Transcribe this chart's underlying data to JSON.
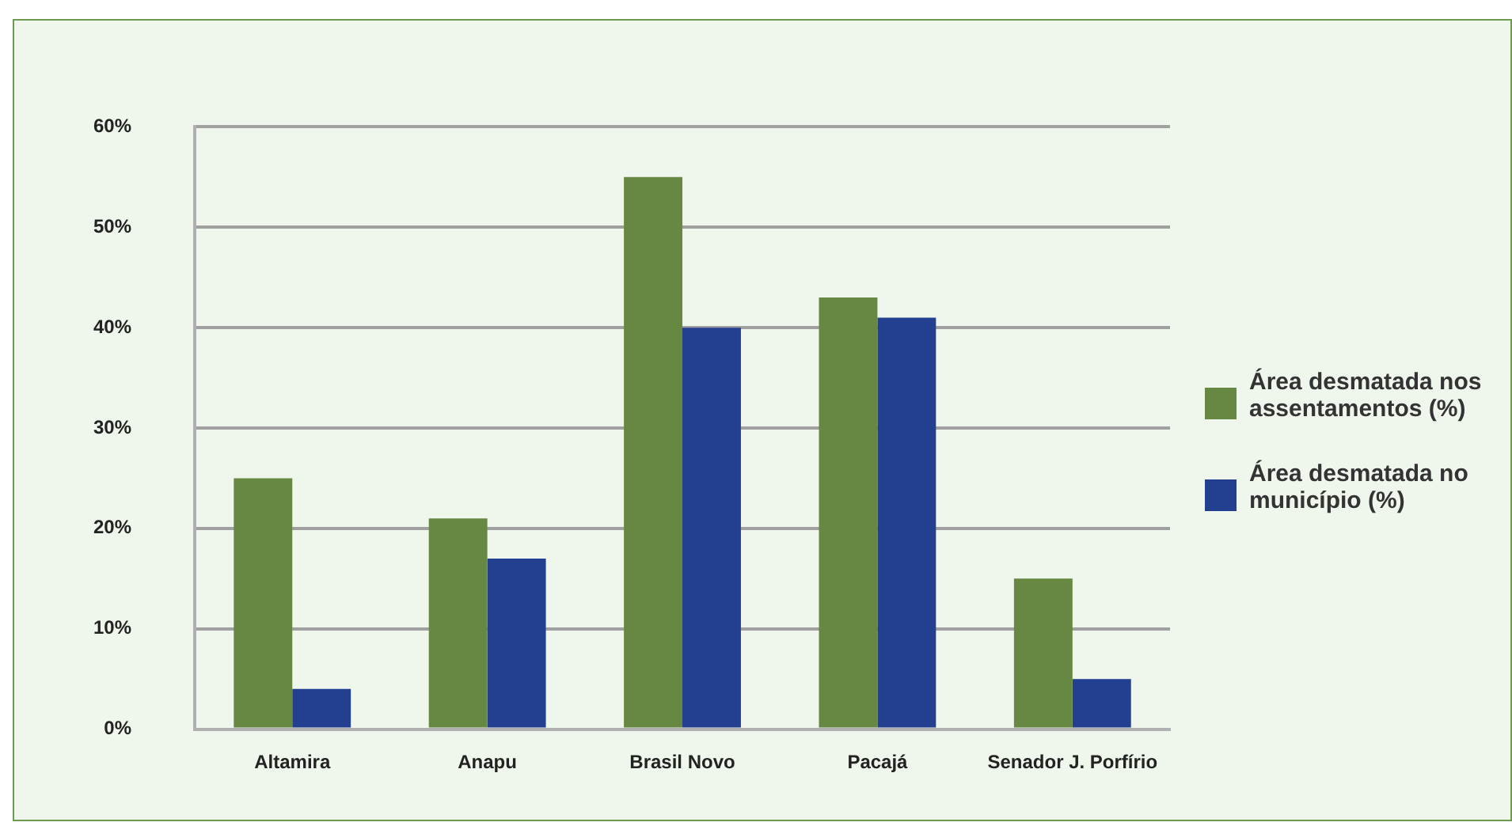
{
  "chart_data": {
    "type": "bar",
    "categories": [
      "Altamira",
      "Anapu",
      "Brasil Novo",
      "Pacajá",
      "Senador J. Porfírio"
    ],
    "series": [
      {
        "name": "Área desmatada nos assentamentos (%)",
        "color": "#678843",
        "values": [
          25,
          21,
          55,
          43,
          15
        ]
      },
      {
        "name": "Área desmatada no município (%)",
        "color": "#233f8f",
        "values": [
          4,
          17,
          40,
          41,
          5
        ]
      }
    ],
    "ylim": [
      0,
      60
    ],
    "yticks": [
      {
        "value": 0,
        "label": "0%"
      },
      {
        "value": 10,
        "label": "10%"
      },
      {
        "value": 20,
        "label": "20%"
      },
      {
        "value": 30,
        "label": "30%"
      },
      {
        "value": 40,
        "label": "40%"
      },
      {
        "value": 50,
        "label": "50%"
      },
      {
        "value": 60,
        "label": "60%"
      }
    ],
    "grid": "y",
    "legend": "right"
  }
}
